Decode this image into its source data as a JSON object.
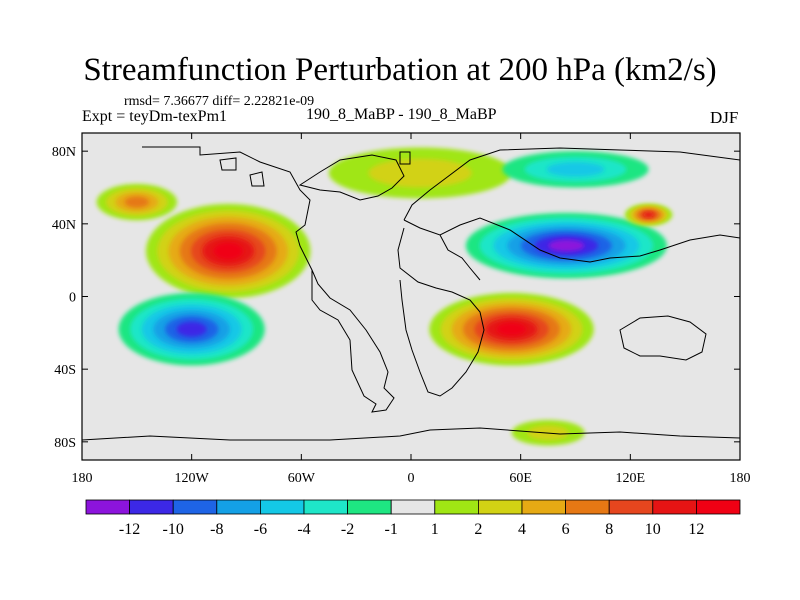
{
  "chart_data": {
    "type": "heatmap",
    "title": "Streamfunction Perturbation at 200 hPa (km2/s)",
    "stats_line": "rmsd= 7.36677 diff= 2.22821e-09",
    "left_label": "Expt = teyDm-texPm1",
    "center_label": "190_8_MaBP - 190_8_MaBP",
    "right_label": "DJF",
    "x_ticks": [
      {
        "value": -180,
        "label": "180"
      },
      {
        "value": -120,
        "label": "120W"
      },
      {
        "value": -60,
        "label": "60W"
      },
      {
        "value": 0,
        "label": "0"
      },
      {
        "value": 60,
        "label": "60E"
      },
      {
        "value": 120,
        "label": "120E"
      },
      {
        "value": 180,
        "label": "180"
      }
    ],
    "y_ticks": [
      {
        "value": 80,
        "label": "80N"
      },
      {
        "value": 40,
        "label": "40N"
      },
      {
        "value": 0,
        "label": "0"
      },
      {
        "value": -40,
        "label": "40S"
      },
      {
        "value": -80,
        "label": "80S"
      }
    ],
    "xlim": [
      -180,
      180
    ],
    "ylim": [
      -90,
      90
    ],
    "levels": [
      "-12",
      "-10",
      "-8",
      "-6",
      "-4",
      "-2",
      "-1",
      "1",
      "2",
      "4",
      "6",
      "8",
      "10",
      "12"
    ],
    "colors": [
      "#8c14dc",
      "#3c28e6",
      "#1e64e6",
      "#14a0e6",
      "#14c8e6",
      "#1ee6c8",
      "#1ee682",
      "#e6e6e6",
      "#a0e614",
      "#d2d214",
      "#e6aa14",
      "#e67814",
      "#e6461e",
      "#e61414",
      "#f00014"
    ],
    "centers": [
      {
        "lon": -100,
        "lat": 25,
        "value": 14,
        "rx": 45,
        "ry": 26
      },
      {
        "lon": -150,
        "lat": 52,
        "value": 7,
        "rx": 22,
        "ry": 10
      },
      {
        "lon": 55,
        "lat": -18,
        "value": 12,
        "rx": 45,
        "ry": 20
      },
      {
        "lon": 75,
        "lat": -75,
        "value": 3,
        "rx": 20,
        "ry": 7
      },
      {
        "lon": 5,
        "lat": 68,
        "value": 3,
        "rx": 50,
        "ry": 14
      },
      {
        "lon": -120,
        "lat": -18,
        "value": -11,
        "rx": 40,
        "ry": 20
      },
      {
        "lon": 85,
        "lat": 28,
        "value": -13,
        "rx": 55,
        "ry": 18
      },
      {
        "lon": 90,
        "lat": 70,
        "value": -5,
        "rx": 40,
        "ry": 10
      },
      {
        "lon": 130,
        "lat": 45,
        "value": 10,
        "rx": 13,
        "ry": 6
      }
    ]
  }
}
